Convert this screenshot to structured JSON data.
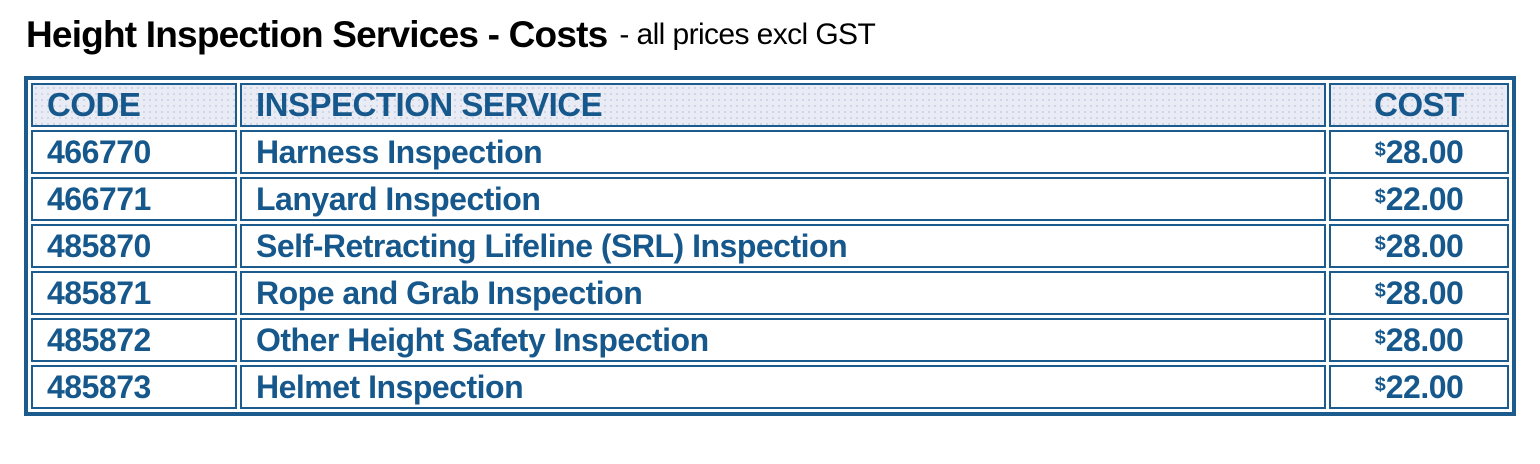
{
  "title": {
    "main": "Height Inspection Services - Costs",
    "suffix": "- all prices excl GST"
  },
  "table": {
    "headers": {
      "code": "CODE",
      "service": "INSPECTION SERVICE",
      "cost": "COST"
    },
    "rows": [
      {
        "code": "466770",
        "service": "Harness Inspection",
        "currency": "$",
        "price": "28.00"
      },
      {
        "code": "466771",
        "service": "Lanyard Inspection",
        "currency": "$",
        "price": "22.00"
      },
      {
        "code": "485870",
        "service": "Self-Retracting Lifeline (SRL) Inspection",
        "currency": "$",
        "price": "28.00"
      },
      {
        "code": "485871",
        "service": "Rope and Grab Inspection",
        "currency": "$",
        "price": "28.00"
      },
      {
        "code": "485872",
        "service": "Other Height Safety Inspection",
        "currency": "$",
        "price": "28.00"
      },
      {
        "code": "485873",
        "service": "Helmet Inspection",
        "currency": "$",
        "price": "22.00"
      }
    ]
  },
  "colors": {
    "accent_text": "#16588c",
    "border": "#1c5b8e",
    "header_bg": "#e9ecf4",
    "title": "#000000",
    "background": "#ffffff"
  }
}
